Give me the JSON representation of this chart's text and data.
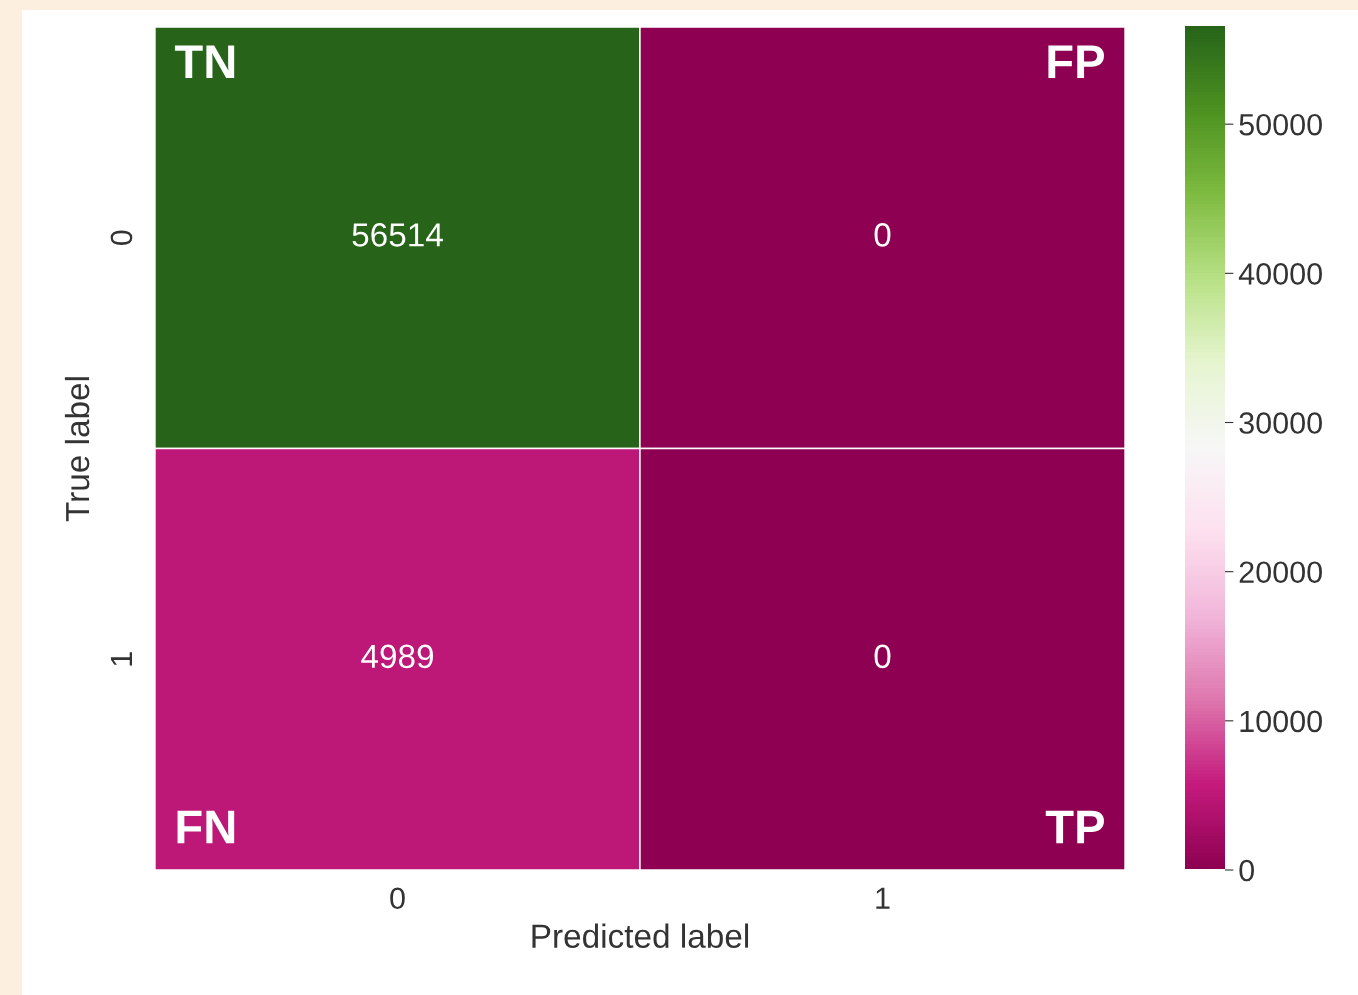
{
  "chart_data": {
    "type": "heatmap",
    "categories": [
      "0",
      "1"
    ],
    "y_categories": [
      "0",
      "1"
    ],
    "cells": [
      [
        56514,
        0
      ],
      [
        4989,
        0
      ]
    ],
    "data_labels": true,
    "xlabel": "Predicted label",
    "ylabel": "True label",
    "clim": [
      0,
      56514
    ],
    "cticks": [
      0,
      10000,
      20000,
      30000,
      40000,
      50000
    ],
    "annotations": [
      "TN",
      "FP",
      "FN",
      "TP"
    ]
  }
}
